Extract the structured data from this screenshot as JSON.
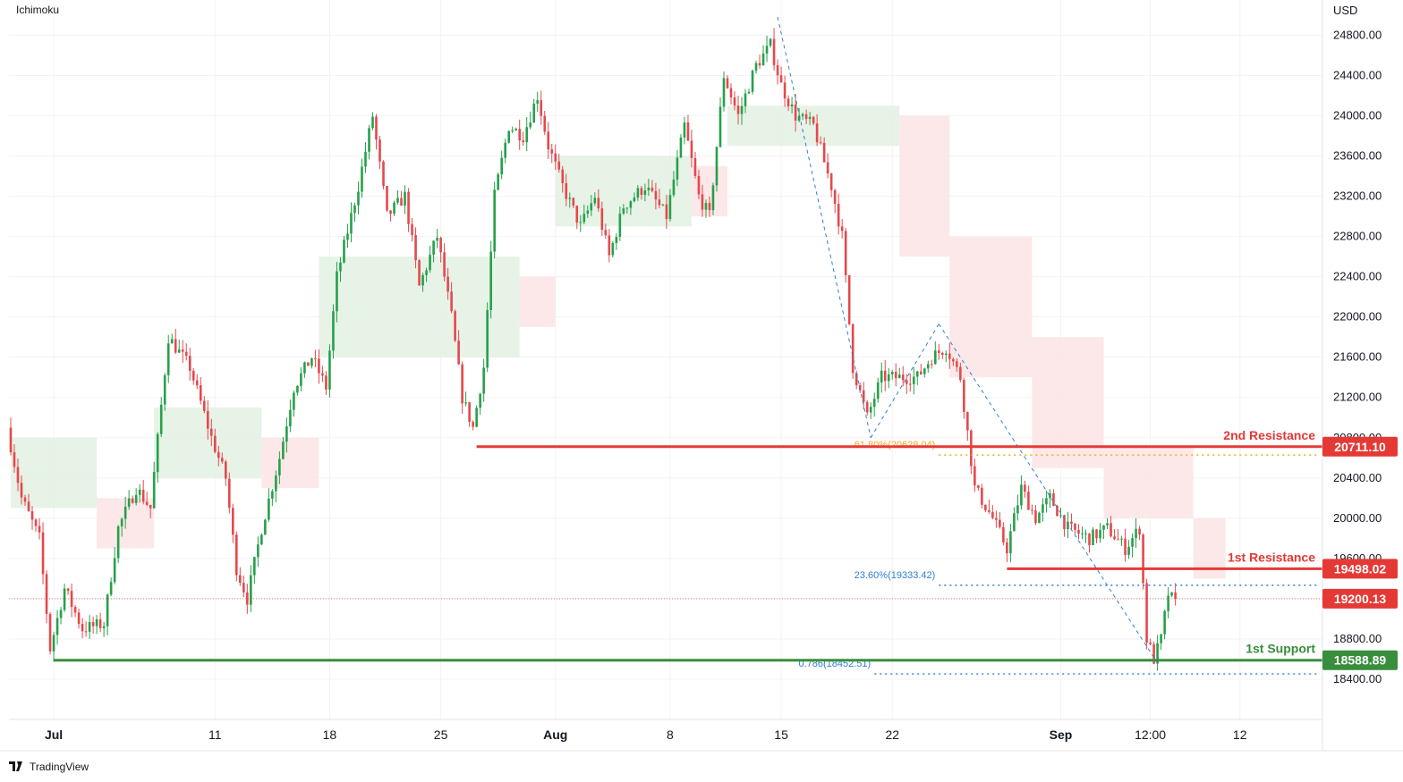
{
  "indicator_label": "Ichimoku",
  "currency": "USD",
  "branding": "TradingView",
  "chart_data": {
    "type": "candlestick",
    "ylim": [
      18000,
      25150
    ],
    "price_ticks": [
      18400,
      18800,
      19200,
      19600,
      20000,
      20400,
      20800,
      21200,
      21600,
      22000,
      22400,
      22800,
      23200,
      23600,
      24000,
      24400,
      24800
    ],
    "price_tick_labels": [
      "18400.00",
      "18800.00",
      "19200.00",
      "19600.00",
      "20000.00",
      "20400.00",
      "20800.00",
      "21200.00",
      "21600.00",
      "22000.00",
      "22400.00",
      "22800.00",
      "23200.00",
      "23600.00",
      "24000.00",
      "24400.00",
      "24800.00"
    ],
    "time_ticks": [
      {
        "label": "Jul",
        "slot": 12,
        "bold": true
      },
      {
        "label": "11",
        "slot": 57,
        "bold": false
      },
      {
        "label": "18",
        "slot": 89,
        "bold": false
      },
      {
        "label": "25",
        "slot": 120,
        "bold": false
      },
      {
        "label": "Aug",
        "slot": 152,
        "bold": true
      },
      {
        "label": "8",
        "slot": 184,
        "bold": false
      },
      {
        "label": "15",
        "slot": 215,
        "bold": false
      },
      {
        "label": "22",
        "slot": 246,
        "bold": false
      },
      {
        "label": "Sep",
        "slot": 293,
        "bold": true
      },
      {
        "label": "12:00",
        "slot": 318,
        "bold": false
      },
      {
        "label": "12",
        "slot": 343,
        "bold": false
      }
    ],
    "price_path": [
      {
        "slot": 0,
        "price": 20900
      },
      {
        "slot": 4,
        "price": 20200
      },
      {
        "slot": 9,
        "price": 19800
      },
      {
        "slot": 12,
        "price": 18700
      },
      {
        "slot": 16,
        "price": 19300
      },
      {
        "slot": 21,
        "price": 18900
      },
      {
        "slot": 27,
        "price": 18950
      },
      {
        "slot": 31,
        "price": 19900
      },
      {
        "slot": 36,
        "price": 20300
      },
      {
        "slot": 40,
        "price": 20100
      },
      {
        "slot": 45,
        "price": 21800
      },
      {
        "slot": 51,
        "price": 21500
      },
      {
        "slot": 57,
        "price": 20800
      },
      {
        "slot": 61,
        "price": 20400
      },
      {
        "slot": 64,
        "price": 19500
      },
      {
        "slot": 67,
        "price": 19200
      },
      {
        "slot": 71,
        "price": 19900
      },
      {
        "slot": 76,
        "price": 20600
      },
      {
        "slot": 80,
        "price": 21300
      },
      {
        "slot": 85,
        "price": 21600
      },
      {
        "slot": 89,
        "price": 21300
      },
      {
        "slot": 92,
        "price": 22400
      },
      {
        "slot": 98,
        "price": 23300
      },
      {
        "slot": 102,
        "price": 24000
      },
      {
        "slot": 106,
        "price": 23000
      },
      {
        "slot": 111,
        "price": 23200
      },
      {
        "slot": 115,
        "price": 22300
      },
      {
        "slot": 120,
        "price": 22800
      },
      {
        "slot": 124,
        "price": 22000
      },
      {
        "slot": 127,
        "price": 21200
      },
      {
        "slot": 130,
        "price": 20900
      },
      {
        "slot": 133,
        "price": 21500
      },
      {
        "slot": 136,
        "price": 23200
      },
      {
        "slot": 140,
        "price": 23900
      },
      {
        "slot": 144,
        "price": 23800
      },
      {
        "slot": 148,
        "price": 24200
      },
      {
        "slot": 151,
        "price": 23700
      },
      {
        "slot": 155,
        "price": 23300
      },
      {
        "slot": 160,
        "price": 22900
      },
      {
        "slot": 164,
        "price": 23200
      },
      {
        "slot": 168,
        "price": 22600
      },
      {
        "slot": 172,
        "price": 23100
      },
      {
        "slot": 178,
        "price": 23300
      },
      {
        "slot": 184,
        "price": 23000
      },
      {
        "slot": 189,
        "price": 23900
      },
      {
        "slot": 193,
        "price": 23200
      },
      {
        "slot": 196,
        "price": 23000
      },
      {
        "slot": 200,
        "price": 24400
      },
      {
        "slot": 204,
        "price": 24000
      },
      {
        "slot": 209,
        "price": 24500
      },
      {
        "slot": 213,
        "price": 24700
      },
      {
        "slot": 216,
        "price": 24300
      },
      {
        "slot": 220,
        "price": 24000
      },
      {
        "slot": 225,
        "price": 23900
      },
      {
        "slot": 230,
        "price": 23300
      },
      {
        "slot": 233,
        "price": 22800
      },
      {
        "slot": 236,
        "price": 21500
      },
      {
        "slot": 240,
        "price": 21000
      },
      {
        "slot": 244,
        "price": 21400
      },
      {
        "slot": 249,
        "price": 21400
      },
      {
        "slot": 254,
        "price": 21400
      },
      {
        "slot": 258,
        "price": 21600
      },
      {
        "slot": 262,
        "price": 21700
      },
      {
        "slot": 266,
        "price": 21400
      },
      {
        "slot": 270,
        "price": 20300
      },
      {
        "slot": 275,
        "price": 20000
      },
      {
        "slot": 279,
        "price": 19700
      },
      {
        "slot": 283,
        "price": 20300
      },
      {
        "slot": 287,
        "price": 20000
      },
      {
        "slot": 291,
        "price": 20200
      },
      {
        "slot": 296,
        "price": 19900
      },
      {
        "slot": 302,
        "price": 19800
      },
      {
        "slot": 307,
        "price": 19900
      },
      {
        "slot": 312,
        "price": 19700
      },
      {
        "slot": 316,
        "price": 19900
      },
      {
        "slot": 318,
        "price": 18800
      },
      {
        "slot": 320,
        "price": 18600
      },
      {
        "slot": 322,
        "price": 18800
      },
      {
        "slot": 324,
        "price": 19250
      },
      {
        "slot": 325,
        "price": 19200
      }
    ],
    "cloud": [
      {
        "from": 0,
        "to": 24,
        "a": 20100,
        "b": 20800,
        "color": "#e3f1e3"
      },
      {
        "from": 24,
        "to": 40,
        "a": 19700,
        "b": 20200,
        "color": "#fbe4e4"
      },
      {
        "from": 40,
        "to": 70,
        "a": 20400,
        "b": 21100,
        "color": "#e3f1e3"
      },
      {
        "from": 70,
        "to": 86,
        "a": 20300,
        "b": 20800,
        "color": "#fbe4e4"
      },
      {
        "from": 86,
        "to": 142,
        "a": 21600,
        "b": 22600,
        "color": "#e3f1e3"
      },
      {
        "from": 142,
        "to": 152,
        "a": 21900,
        "b": 22400,
        "color": "#fbe4e4"
      },
      {
        "from": 152,
        "to": 190,
        "a": 22900,
        "b": 23600,
        "color": "#e3f1e3"
      },
      {
        "from": 190,
        "to": 200,
        "a": 23000,
        "b": 23500,
        "color": "#fbe4e4"
      },
      {
        "from": 200,
        "to": 248,
        "a": 23700,
        "b": 24100,
        "color": "#e3f1e3"
      },
      {
        "from": 248,
        "to": 262,
        "a": 22600,
        "b": 24000,
        "color": "#fbe4e4"
      },
      {
        "from": 262,
        "to": 285,
        "a": 21400,
        "b": 22800,
        "color": "#fbe4e4"
      },
      {
        "from": 285,
        "to": 305,
        "a": 20500,
        "b": 21800,
        "color": "#fbe4e4"
      },
      {
        "from": 305,
        "to": 330,
        "a": 20000,
        "b": 20700,
        "color": "#fbe4e4"
      },
      {
        "from": 330,
        "to": 339,
        "a": 19400,
        "b": 20000,
        "color": "#fbe4e4"
      }
    ],
    "colors": {
      "up": "#26a04a",
      "down": "#e5484d",
      "resistance": "#e53935",
      "support": "#388e3c",
      "fib": "#2d7fd1",
      "fib_orange": "#f4a71d",
      "grid": "#f3f3f3",
      "axis_text": "#131722",
      "current_price": "#e53935"
    },
    "levels": [
      {
        "name": "2nd Resistance",
        "price": 20711.1,
        "price_label": "20711.10",
        "color": "#e53935",
        "start_slot": 130
      },
      {
        "name": "1st Resistance",
        "price": 19498.02,
        "price_label": "19498.02",
        "color": "#e53935",
        "start_slot": 278
      },
      {
        "name": "1st Support",
        "price": 18588.89,
        "price_label": "18588.89",
        "color": "#388e3c",
        "start_slot": 12
      }
    ],
    "current_price": {
      "price": 19200.13,
      "label": "19200.13"
    },
    "fib_levels": [
      {
        "label": "61.80%(20628.04)",
        "price": 20628.04,
        "color": "#f4a71d",
        "start_slot": 259
      },
      {
        "label": "23.60%(19333.42)",
        "price": 19333.42,
        "color": "#2d7fd1",
        "start_slot": 259
      },
      {
        "label": "0.786(18452.51)",
        "price": 18452.51,
        "color": "#2d7fd1",
        "start_slot": 241
      }
    ],
    "trend_lines": [
      {
        "from_slot": 214,
        "from_price": 24980,
        "to_slot": 240,
        "to_price": 20800
      },
      {
        "from_slot": 240,
        "from_price": 20800,
        "to_slot": 259,
        "to_price": 21930
      },
      {
        "from_slot": 259,
        "from_price": 21930,
        "to_slot": 320,
        "to_price": 18560
      }
    ]
  }
}
